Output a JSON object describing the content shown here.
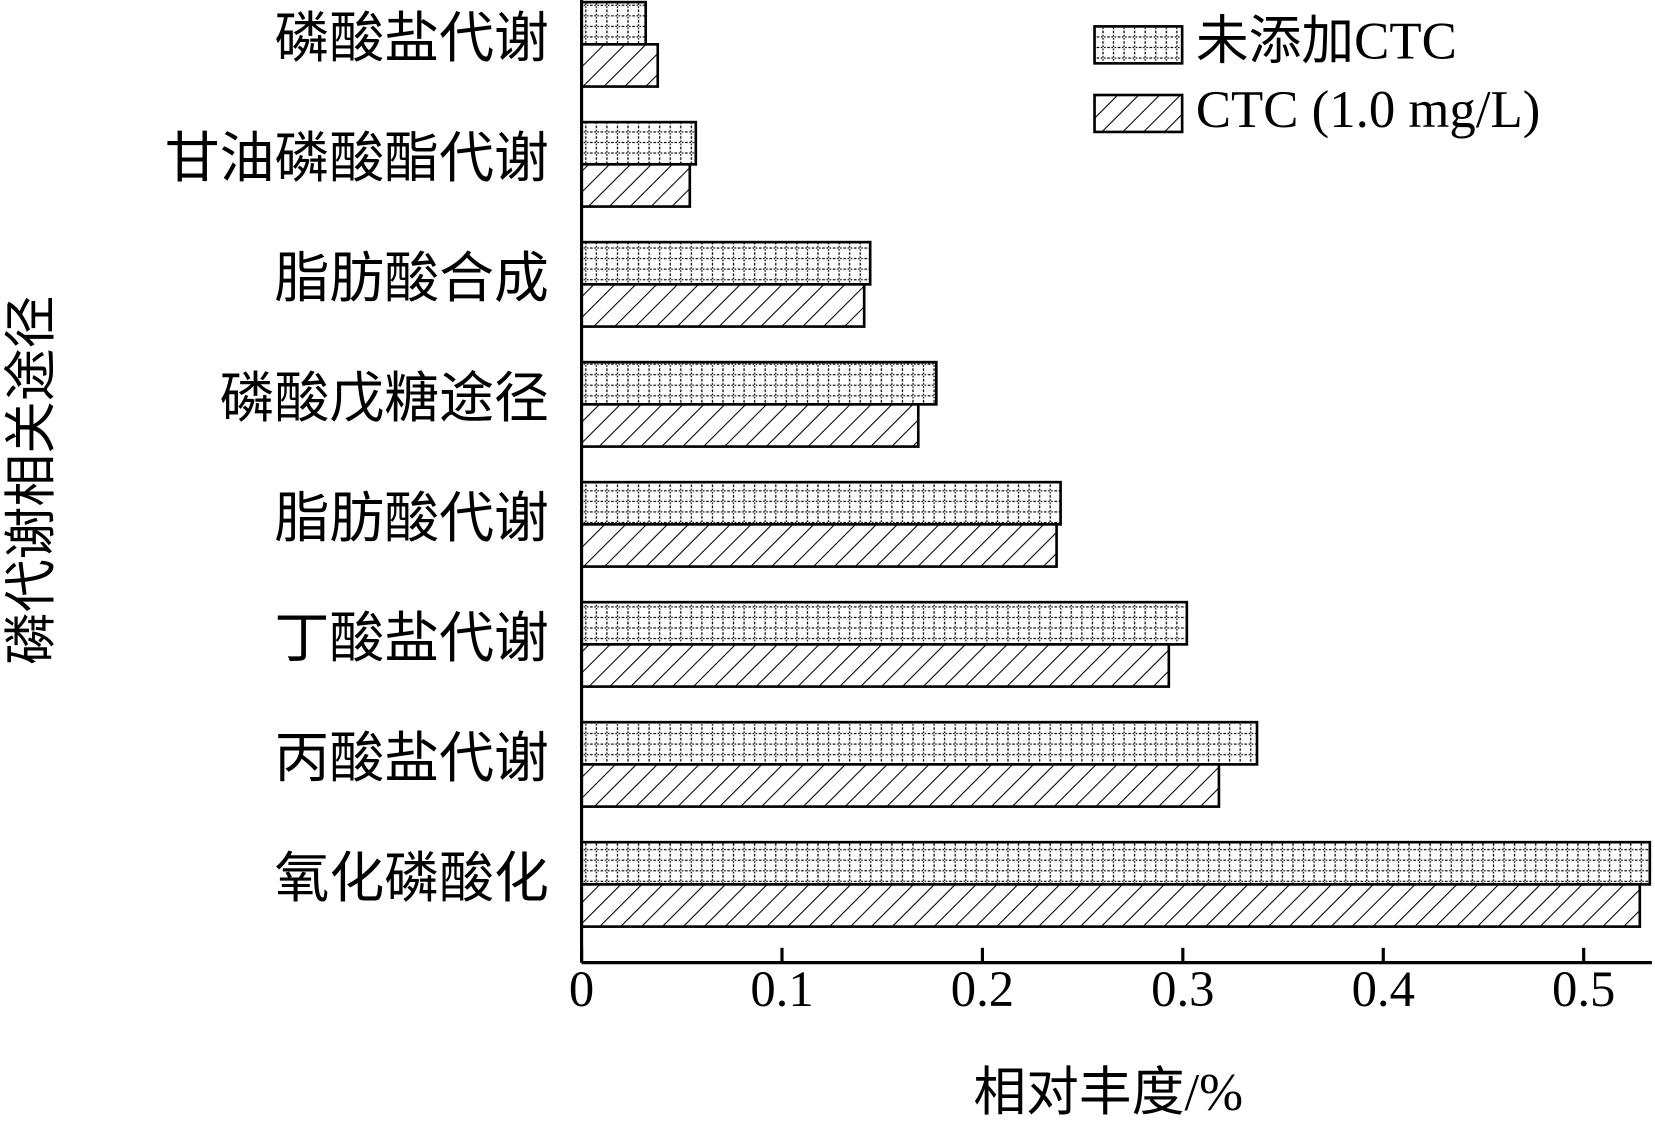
{
  "chart_data": {
    "type": "hbar",
    "y_axis_label": "磷代谢相关途径",
    "x_axis_label": "相对丰度/%",
    "categories": [
      "磷酸盐代谢",
      "甘油磷酸酯代谢",
      "脂肪酸合成",
      "磷酸戊糖途径",
      "脂肪酸代谢",
      "丁酸盐代谢",
      "丙酸盐代谢",
      "氧化磷酸化"
    ],
    "series": [
      {
        "name": "未添加CTC",
        "color": "#000000",
        "pattern": "grid",
        "values": [
          0.032,
          0.057,
          0.144,
          0.177,
          0.239,
          0.302,
          0.337,
          0.533
        ]
      },
      {
        "name": "CTC (1.0 mg/L)",
        "color": "#000000",
        "pattern": "hatch",
        "values": [
          0.038,
          0.054,
          0.141,
          0.168,
          0.237,
          0.293,
          0.318,
          0.528
        ]
      }
    ],
    "xlim": [
      0,
      0.534
    ],
    "xticks": [
      0,
      0.1,
      0.2,
      0.3,
      0.4,
      0.5
    ],
    "legend": "top-right"
  }
}
